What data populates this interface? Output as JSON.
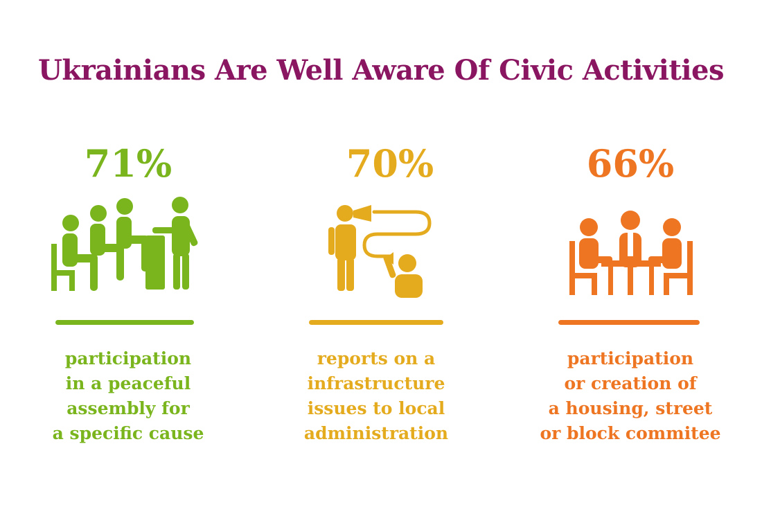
{
  "title": "Ukrainians Are Well Aware Of Civic Activities",
  "colors": {
    "title": "#8a1561",
    "green": "#7ab51d",
    "gold": "#e5ab1f",
    "orange": "#ee7623"
  },
  "items": [
    {
      "value": "71%",
      "icon": "peaceful-assembly-icon",
      "description": "participation\nin a peaceful\nassembly for\na specific cause"
    },
    {
      "value": "70%",
      "icon": "reporting-to-authorities-icon",
      "description": "reports on a\ninfrastructure\nissues to local\nadministration"
    },
    {
      "value": "66%",
      "icon": "committee-meeting-icon",
      "description": "participation\nor creation of\na housing, street\nor block commitee"
    }
  ]
}
